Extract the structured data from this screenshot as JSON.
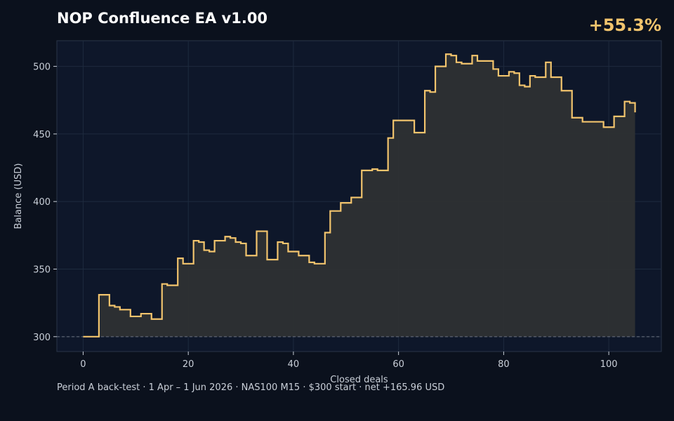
{
  "header": {
    "title": "NOP Confluence EA v1.00",
    "headline_metric": "+55.3%"
  },
  "caption": "Period A back-test  ·  1 Apr – 1 Jun 2026  ·  NAS100 M15  ·  $300 start  ·  net +165.96 USD",
  "colors": {
    "background": "#0b111d",
    "plot_background": "#0e172a",
    "line": "#f2c46d",
    "fill": "#2e3033",
    "grid": "#1e2a3e",
    "baseline": "#6b7280",
    "text": "#c9cfd8"
  },
  "chart_data": {
    "type": "line",
    "step": true,
    "xlabel": "Closed deals",
    "ylabel": "Balance (USD)",
    "xlim": [
      -5,
      110
    ],
    "ylim": [
      289,
      519
    ],
    "xticks": [
      0,
      20,
      40,
      60,
      80,
      100
    ],
    "yticks": [
      300,
      350,
      400,
      450,
      500
    ],
    "grid": true,
    "baseline": 300,
    "x": [
      0,
      1,
      2,
      3,
      4,
      5,
      6,
      7,
      8,
      9,
      10,
      11,
      12,
      13,
      14,
      15,
      16,
      17,
      18,
      19,
      20,
      21,
      22,
      23,
      24,
      25,
      26,
      27,
      28,
      29,
      30,
      31,
      32,
      33,
      34,
      35,
      36,
      37,
      38,
      39,
      40,
      41,
      42,
      43,
      44,
      45,
      46,
      47,
      48,
      49,
      50,
      51,
      52,
      53,
      54,
      55,
      56,
      57,
      58,
      59,
      60,
      61,
      62,
      63,
      64,
      65,
      66,
      67,
      68,
      69,
      70,
      71,
      72,
      73,
      74,
      75,
      76,
      77,
      78,
      79,
      80,
      81,
      82,
      83,
      84,
      85,
      86,
      87,
      88,
      89,
      90,
      91,
      92,
      93,
      94,
      95,
      96,
      97,
      98,
      99,
      100,
      101,
      102,
      103,
      104,
      105
    ],
    "y": [
      300,
      300,
      300,
      331,
      331,
      323,
      322,
      320,
      320,
      315,
      315,
      317,
      317,
      313,
      313,
      339,
      338,
      338,
      358,
      354,
      354,
      371,
      370,
      364,
      363,
      371,
      371,
      374,
      373,
      370,
      369,
      360,
      360,
      378,
      378,
      357,
      357,
      370,
      369,
      363,
      363,
      360,
      360,
      355,
      354,
      354,
      377,
      393,
      393,
      399,
      399,
      403,
      403,
      423,
      423,
      424,
      423,
      423,
      447,
      460,
      460,
      460,
      460,
      451,
      451,
      482,
      481,
      500,
      500,
      509,
      508,
      503,
      502,
      502,
      508,
      504,
      504,
      504,
      498,
      493,
      493,
      496,
      495,
      486,
      485,
      493,
      492,
      492,
      503,
      492,
      492,
      482,
      482,
      462,
      462,
      459,
      459,
      459,
      459,
      455,
      455,
      463,
      463,
      474,
      473,
      466
    ]
  }
}
